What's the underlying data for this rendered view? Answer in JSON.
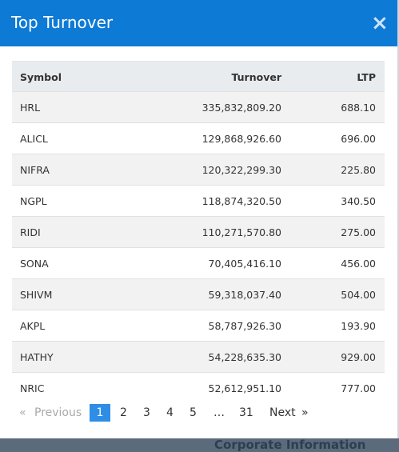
{
  "header": {
    "title": "Top Turnover",
    "close": "×"
  },
  "table": {
    "columns": [
      "Symbol",
      "Turnover",
      "LTP"
    ],
    "rows": [
      [
        "HRL",
        "335,832,809.20",
        "688.10"
      ],
      [
        "ALICL",
        "129,868,926.60",
        "696.00"
      ],
      [
        "NIFRA",
        "120,322,299.30",
        "225.80"
      ],
      [
        "NGPL",
        "118,874,320.50",
        "340.50"
      ],
      [
        "RIDI",
        "110,271,570.80",
        "275.00"
      ],
      [
        "SONA",
        "70,405,416.10",
        "456.00"
      ],
      [
        "SHIVM",
        "59,318,037.40",
        "504.00"
      ],
      [
        "AKPL",
        "58,787,926.30",
        "193.90"
      ],
      [
        "HATHY",
        "54,228,635.30",
        "929.00"
      ],
      [
        "NRIC",
        "52,612,951.10",
        "777.00"
      ]
    ]
  },
  "pagination": {
    "first": "«",
    "previous": "Previous",
    "pages": [
      "1",
      "2",
      "3",
      "4",
      "5",
      "…",
      "31"
    ],
    "next": "Next",
    "last": "»"
  },
  "background_text": "Corporate Information"
}
